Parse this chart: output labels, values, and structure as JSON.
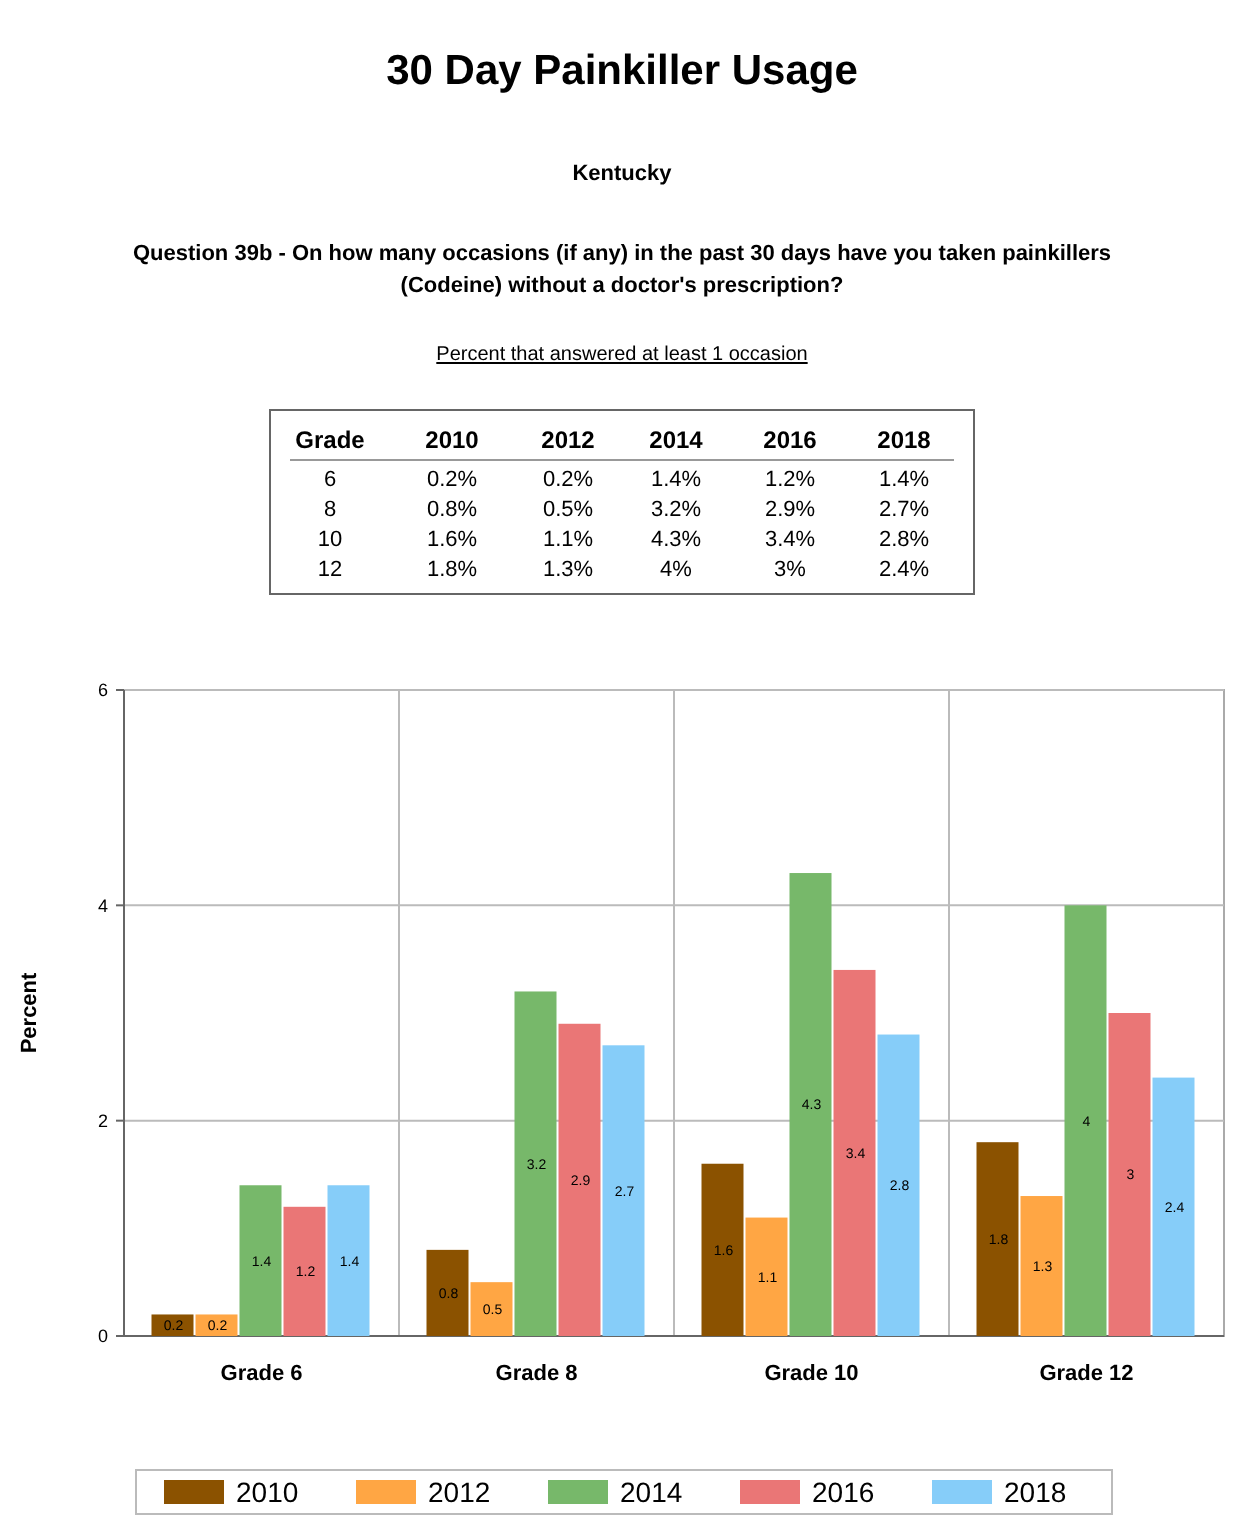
{
  "chart_data": [
    {
      "type": "heatmap",
      "title": "30 Day Painkiller Usage",
      "subtitle": "Kentucky",
      "annotations": [
        "Question 39b - On how many occasions (if any) in the past 30 days have you taken painkillers (Codeine) without a doctor's prescription?",
        "Percent that answered at least 1 occasion"
      ],
      "ylabel": "Grade",
      "categories": [
        "2010",
        "2012",
        "2014",
        "2016",
        "2018"
      ],
      "y_categories": [
        "6",
        "8",
        "10",
        "12"
      ],
      "cells": [
        [
          0.2,
          0.2,
          1.4,
          1.2,
          1.4
        ],
        [
          0.8,
          0.5,
          3.2,
          2.9,
          2.7
        ],
        [
          1.6,
          1.1,
          4.3,
          3.4,
          2.8
        ],
        [
          1.8,
          1.3,
          4,
          3,
          2.4
        ]
      ],
      "cell_labels": [
        [
          "0.2%",
          "0.2%",
          "1.4%",
          "1.2%",
          "1.4%"
        ],
        [
          "0.8%",
          "0.5%",
          "3.2%",
          "2.9%",
          "2.7%"
        ],
        [
          "1.6%",
          "1.1%",
          "4.3%",
          "3.4%",
          "2.8%"
        ],
        [
          "1.8%",
          "1.3%",
          "4%",
          "3%",
          "2.4%"
        ]
      ]
    },
    {
      "type": "bar",
      "ylabel": "Percent",
      "categories": [
        "Grade 6",
        "Grade 8",
        "Grade 10",
        "Grade 12"
      ],
      "series": [
        {
          "name": "2010",
          "color": "#8b5200",
          "values": [
            0.2,
            0.8,
            1.6,
            1.8
          ]
        },
        {
          "name": "2012",
          "color": "#ffa644",
          "values": [
            0.2,
            0.5,
            1.1,
            1.3
          ]
        },
        {
          "name": "2014",
          "color": "#77b86a",
          "values": [
            1.4,
            3.2,
            4.3,
            4
          ]
        },
        {
          "name": "2016",
          "color": "#ea7676",
          "values": [
            1.2,
            2.9,
            3.4,
            3
          ]
        },
        {
          "name": "2018",
          "color": "#86cdf9",
          "values": [
            1.4,
            2.7,
            2.8,
            2.4
          ]
        }
      ],
      "ylim": [
        0,
        6
      ],
      "yticks": [
        0,
        2,
        4,
        6
      ],
      "grid": true,
      "legend": "bottom",
      "data_labels": true
    }
  ]
}
